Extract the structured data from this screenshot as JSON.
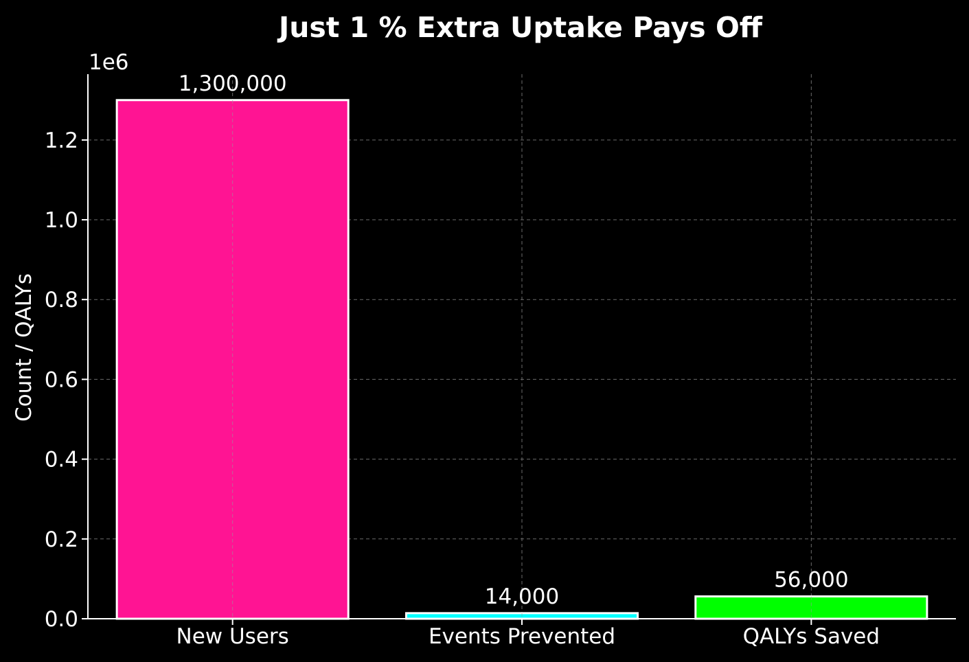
{
  "chart_data": {
    "type": "bar",
    "title": "Just 1 % Extra Uptake Pays Off",
    "xlabel": "",
    "ylabel": "Count / QALYs",
    "y_offset_label": "1e6",
    "categories": [
      "New Users",
      "Events Prevented",
      "QALYs Saved"
    ],
    "values": [
      1300000,
      14000,
      56000
    ],
    "value_labels": [
      "1,300,000",
      "14,000",
      "56,000"
    ],
    "colors": [
      "#ff1493",
      "#00ffff",
      "#00ff00"
    ],
    "edge_color": "#ffffff",
    "ylim": [
      0,
      1365000
    ],
    "yticks": [
      0,
      200000,
      400000,
      600000,
      800000,
      1000000,
      1200000
    ],
    "ytick_labels": [
      "0.0",
      "0.2",
      "0.4",
      "0.6",
      "0.8",
      "1.0",
      "1.2"
    ],
    "grid": true,
    "background": "#000000"
  }
}
